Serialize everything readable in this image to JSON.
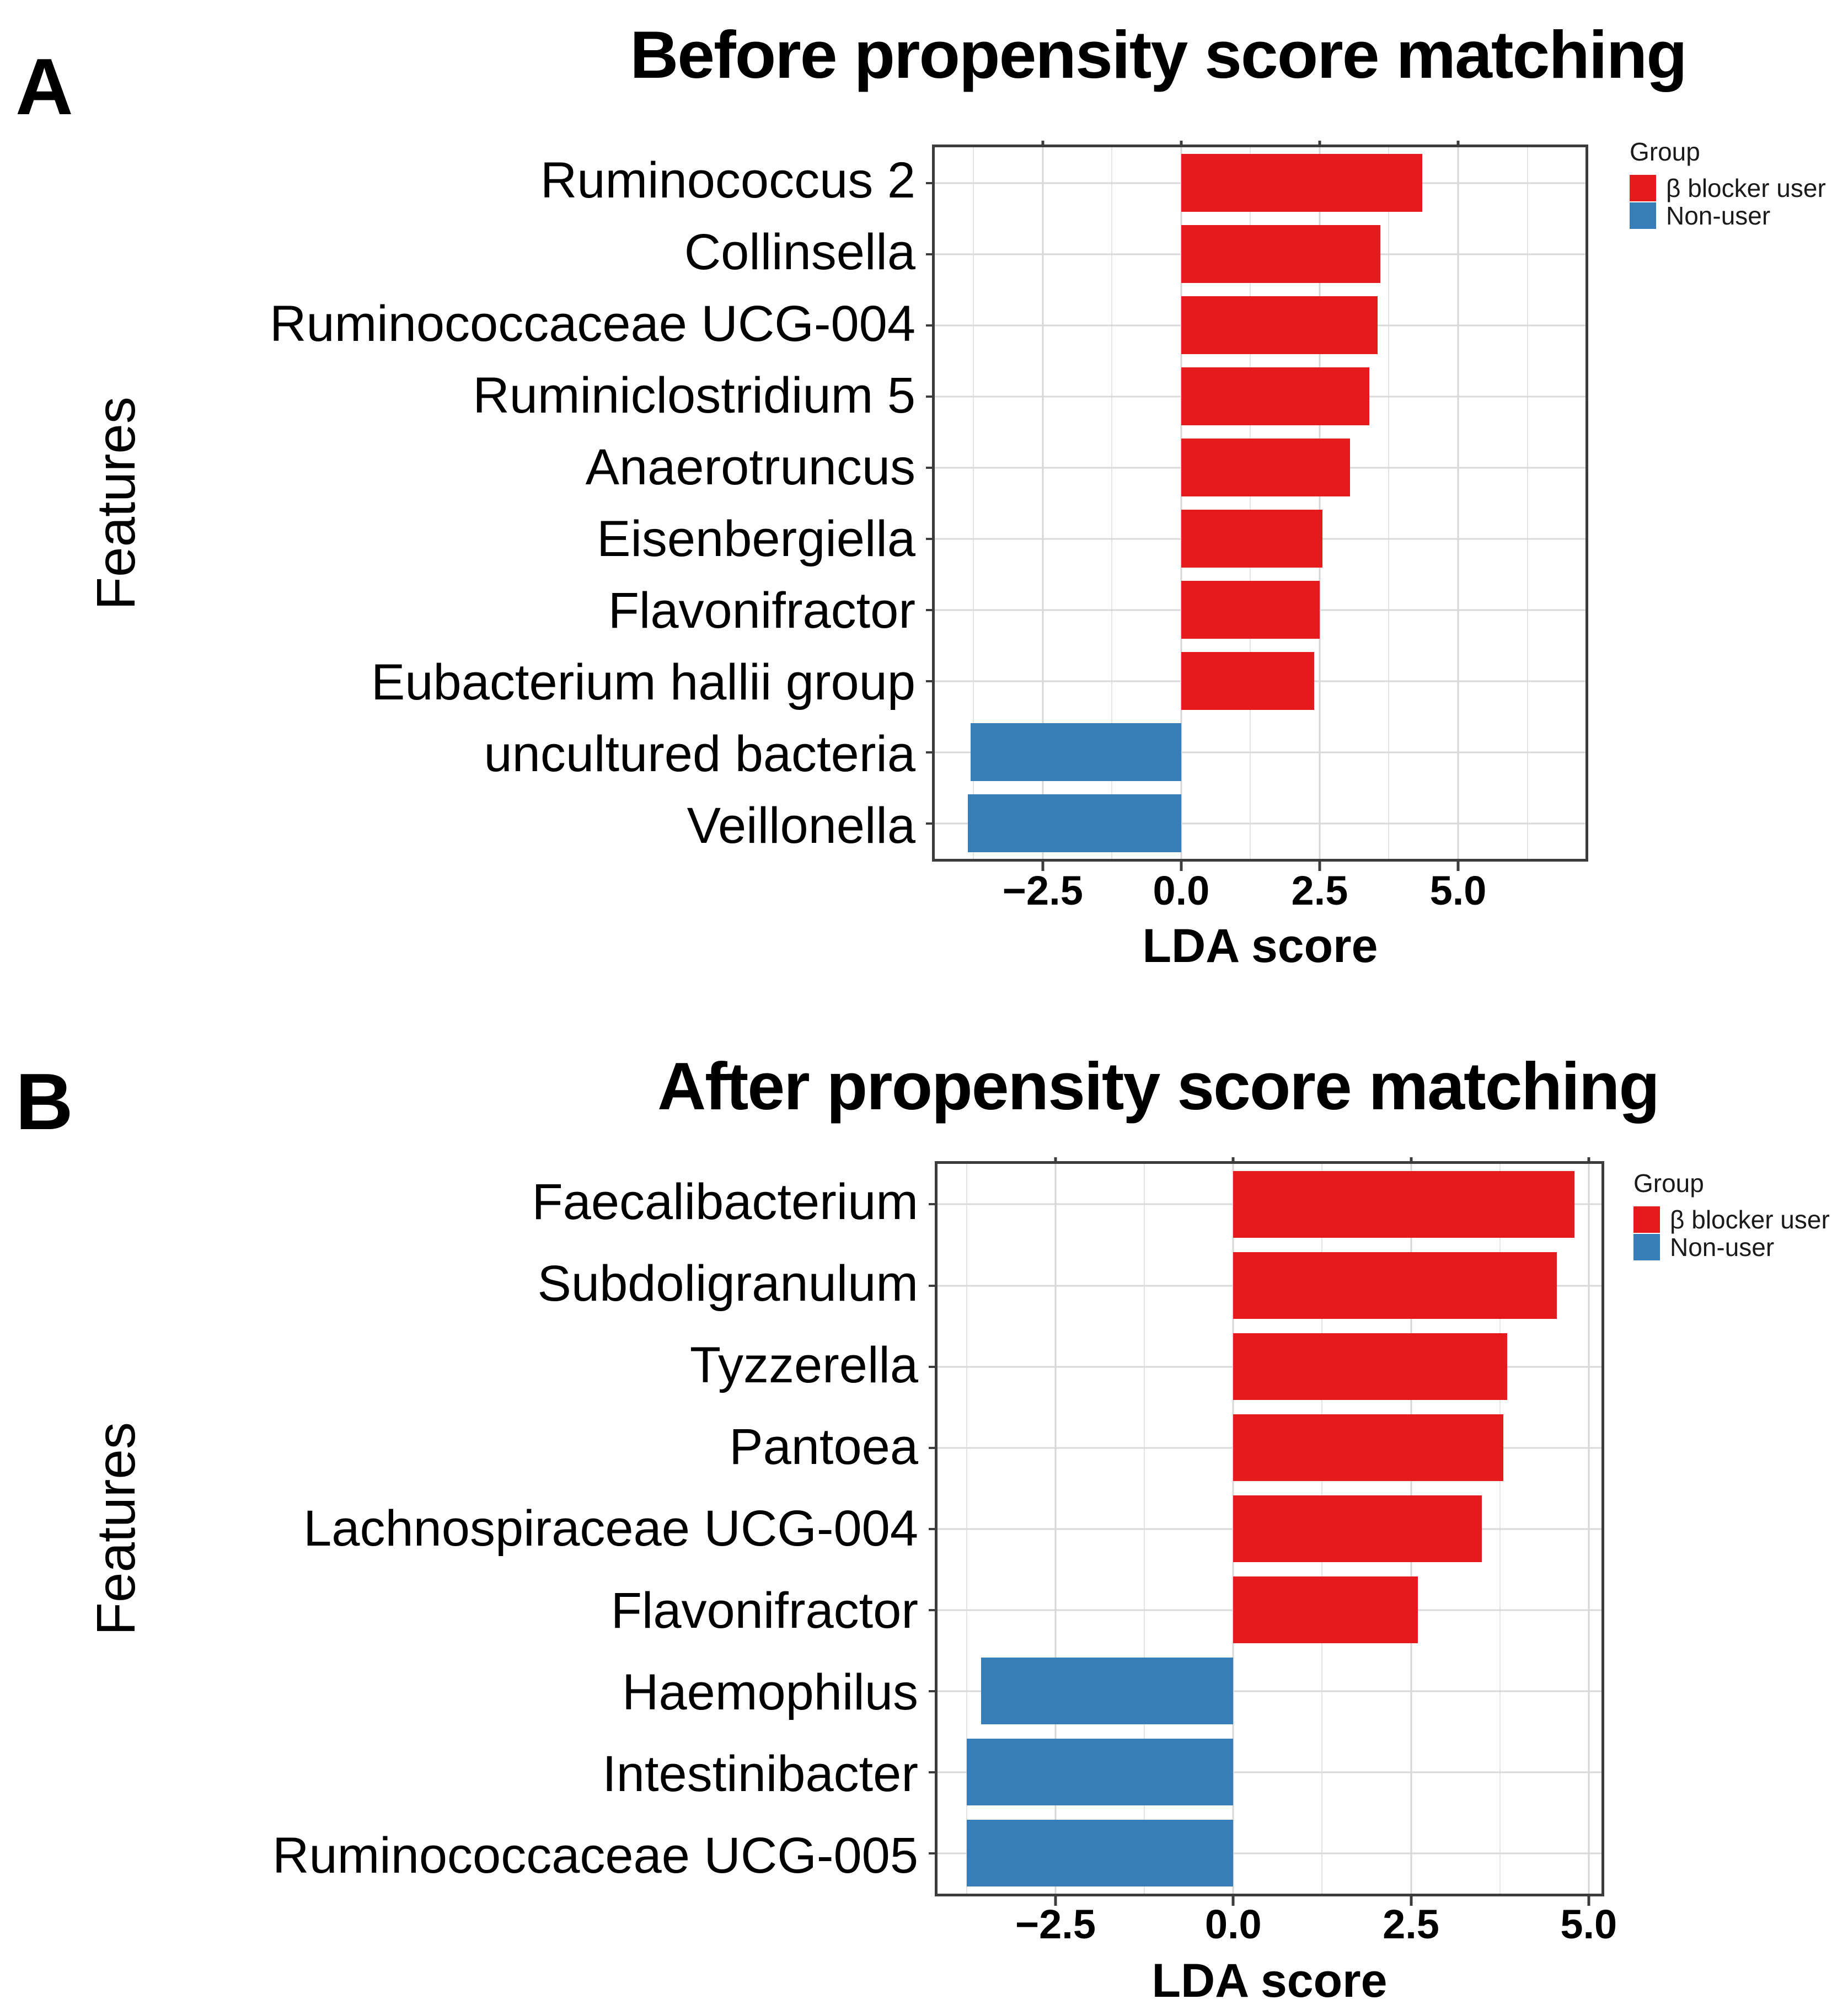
{
  "chart_data": [
    {
      "type": "bar",
      "orientation": "horizontal",
      "panel_letter": "A",
      "title": "Before propensity score matching",
      "xlabel": "LDA score",
      "ylabel": "Features",
      "xlim": [
        -4.45,
        7.3
      ],
      "x_major_ticks": [
        -2.5,
        0.0,
        2.5,
        5.0
      ],
      "x_tick_labels": [
        "−2.5",
        "0.0",
        "2.5",
        "5.0"
      ],
      "x_minor_ticks": [
        -3.75,
        -1.25,
        1.25,
        3.75,
        6.25
      ],
      "grid": true,
      "legend": {
        "title": "Group",
        "position": "right-top",
        "items": [
          {
            "label": "β blocker user",
            "color": "#e41a1c"
          },
          {
            "label": "Non-user",
            "color": "#377eb8"
          }
        ]
      },
      "categories": [
        "Ruminococcus 2",
        "Collinsella",
        "Ruminococcaceae UCG-004",
        "Ruminiclostridium 5",
        "Anaerotruncus",
        "Eisenbergiella",
        "Flavonifractor",
        "Eubacterium hallii group",
        "uncultured bacteria",
        "Veillonella"
      ],
      "values": [
        4.35,
        3.6,
        3.55,
        3.4,
        3.05,
        2.55,
        2.5,
        2.4,
        -3.8,
        -3.85
      ],
      "groups": [
        "β blocker user",
        "β blocker user",
        "β blocker user",
        "β blocker user",
        "β blocker user",
        "β blocker user",
        "β blocker user",
        "β blocker user",
        "Non-user",
        "Non-user"
      ],
      "colors": {
        "β blocker user": "#e41a1c",
        "Non-user": "#377eb8"
      }
    },
    {
      "type": "bar",
      "orientation": "horizontal",
      "panel_letter": "B",
      "title": "After propensity score matching",
      "xlabel": "LDA score",
      "ylabel": "Features",
      "xlim": [
        -4.16,
        5.18
      ],
      "x_major_ticks": [
        -2.5,
        0.0,
        2.5,
        5.0
      ],
      "x_tick_labels": [
        "−2.5",
        "0.0",
        "2.5",
        "5.0"
      ],
      "x_minor_ticks": [
        -3.75,
        -1.25,
        1.25,
        3.75
      ],
      "grid": true,
      "legend": {
        "title": "Group",
        "position": "right-top",
        "items": [
          {
            "label": "β blocker user",
            "color": "#e41a1c"
          },
          {
            "label": "Non-user",
            "color": "#377eb8"
          }
        ]
      },
      "categories": [
        "Faecalibacterium",
        "Subdoligranulum",
        "Tyzzerella",
        "Pantoea",
        "Lachnospiraceae UCG-004",
        "Flavonifractor",
        "Haemophilus",
        "Intestinibacter",
        "Ruminococcaceae UCG-005"
      ],
      "values": [
        4.8,
        4.55,
        3.85,
        3.8,
        3.5,
        2.6,
        -3.55,
        -3.75,
        -3.75
      ],
      "groups": [
        "β blocker user",
        "β blocker user",
        "β blocker user",
        "β blocker user",
        "β blocker user",
        "β blocker user",
        "Non-user",
        "Non-user",
        "Non-user"
      ],
      "colors": {
        "β blocker user": "#e41a1c",
        "Non-user": "#377eb8"
      }
    }
  ]
}
